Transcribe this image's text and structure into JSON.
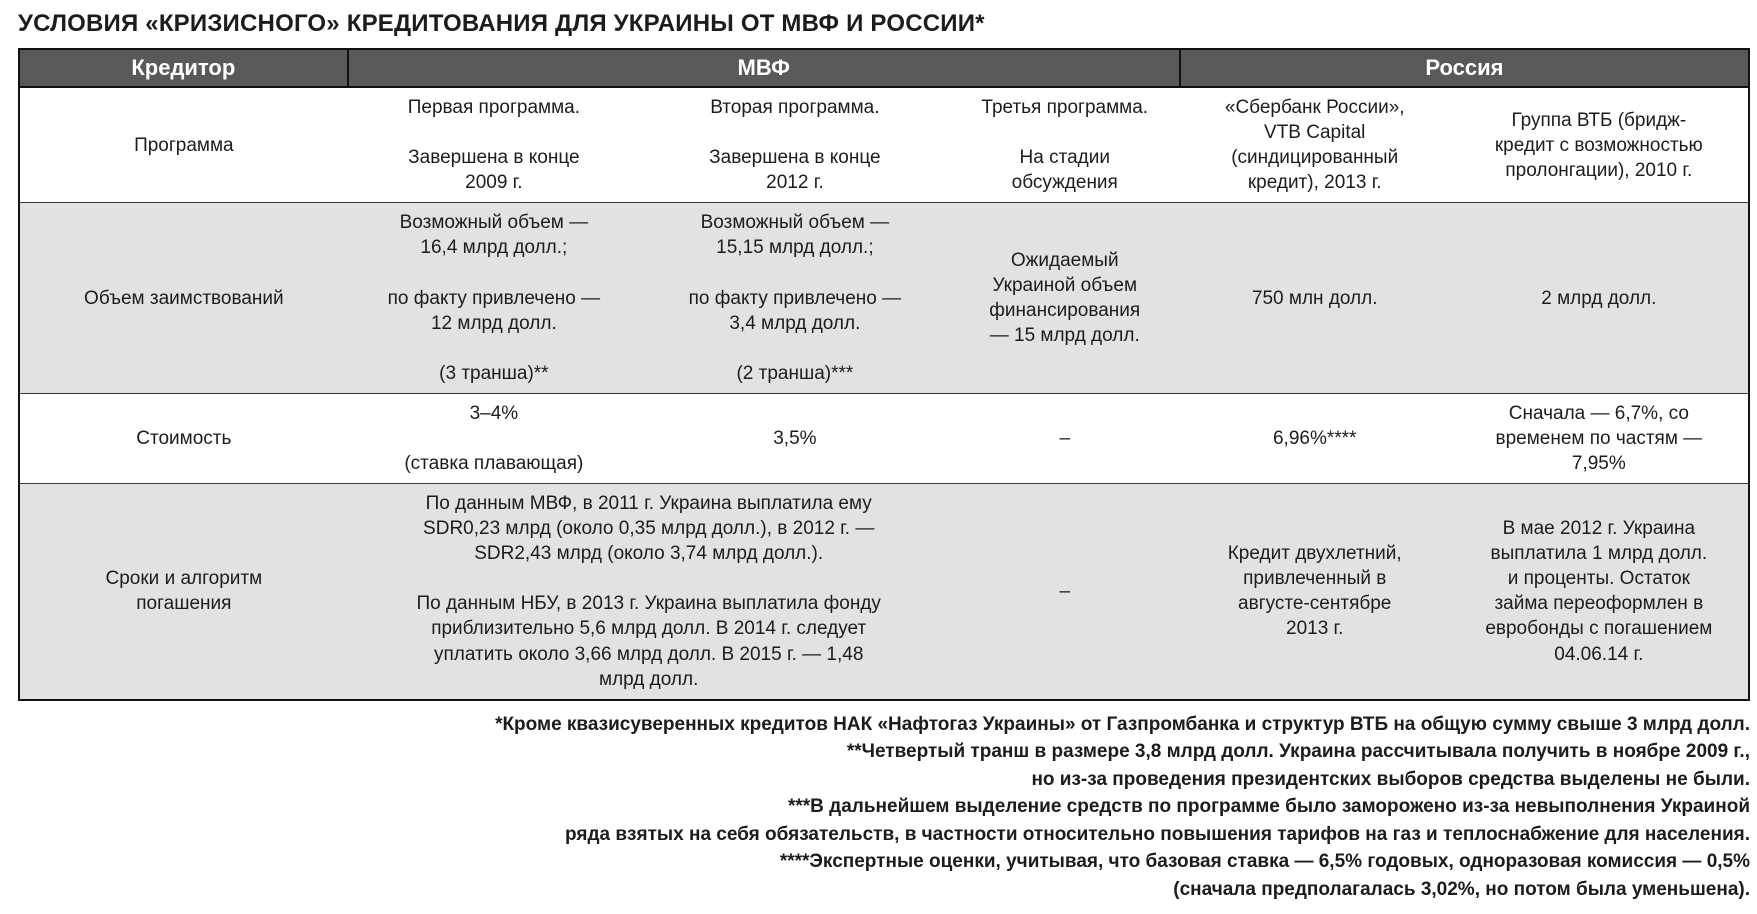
{
  "title": "УСЛОВИЯ «КРИЗИСНОГО» КРЕДИТОВАНИЯ ДЛЯ УКРАИНЫ ОТ МВФ И РОССИИ*",
  "colors": {
    "header_bg": "#58595b",
    "header_fg": "#ffffff",
    "alt_row_bg": "#e2e2e2",
    "border": "#111111"
  },
  "table": {
    "header": {
      "creditor": "Кредитор",
      "imf": "МВФ",
      "russia": "Россия"
    },
    "rows": [
      {
        "label": "Программа",
        "imf1": "Первая программа.\n\nЗавершена в конце\n2009 г.",
        "imf2": "Вторая программа.\n\nЗавершена в конце\n2012 г.",
        "imf3": "Третья программа.\n\nНа стадии\nобсуждения",
        "ru1": "«Сбербанк России»,\nVTB Capital\n(синдицированный\nкредит), 2013 г.",
        "ru2": "Группа ВТБ (бридж-\nкредит с возможностью\nпролонгации), 2010 г."
      },
      {
        "label": "Объем заимствований",
        "imf1": "Возможный объем —\n16,4 млрд долл.;\n\nпо факту привлечено —\n12 млрд долл.\n\n(3 транша)**",
        "imf2": "Возможный объем —\n15,15 млрд долл.;\n\nпо факту привлечено —\n3,4 млрд долл.\n\n(2 транша)***",
        "imf3": "Ожидаемый\nУкраиной объем\nфинансирования\n— 15 млрд долл.",
        "ru1": "750 млн долл.",
        "ru2": "2 млрд долл."
      },
      {
        "label": "Стоимость",
        "imf1": "3–4%\n\n(ставка плавающая)",
        "imf2": "3,5%",
        "imf3": "–",
        "ru1": "6,96%****",
        "ru2": "Сначала — 6,7%, со\nвременем по частям —\n7,95%"
      },
      {
        "label": "Сроки и алгоритм\nпогашения",
        "imf12": "По данным МВФ, в 2011 г. Украина выплатила ему\nSDR0,23 млрд (около 0,35 млрд долл.), в 2012 г. —\nSDR2,43 млрд (около 3,74 млрд долл.).\n\nПо данным НБУ, в 2013 г. Украина выплатила фонду\nприблизительно 5,6 млрд долл. В 2014 г. следует\nуплатить около 3,66 млрд долл. В 2015 г. — 1,48\nмлрд долл.",
        "imf3": "–",
        "ru1": "Кредит двухлетний,\nпривлеченный в\nавгусте-сентябре\n2013 г.",
        "ru2": "В мае 2012 г. Украина\nвыплатила 1 млрд долл.\nи проценты. Остаток\nзайма переоформлен в\nевробонды с погашением\n04.06.14 г."
      }
    ]
  },
  "footnotes": [
    "*Кроме квазисуверенных кредитов НАК «Нафтогаз Украины» от Газпромбанка и структур ВТБ на общую сумму свыше 3 млрд долл.",
    "**Четвертый транш в размере 3,8 млрд долл. Украина рассчитывала получить в ноябре 2009 г.,\nно из-за проведения президентских выборов средства выделены не были.",
    "***В дальнейшем выделение средств по программе было заморожено из-за невыполнения Украиной\nряда взятых на себя обязательств, в частности относительно повышения тарифов на газ и теплоснабжение для населения.",
    "****Экспертные оценки, учитывая, что базовая ставка — 6,5% годовых, одноразовая комиссия — 0,5%\n(сначала предполагалась 3,02%, но потом была уменьшена)."
  ]
}
